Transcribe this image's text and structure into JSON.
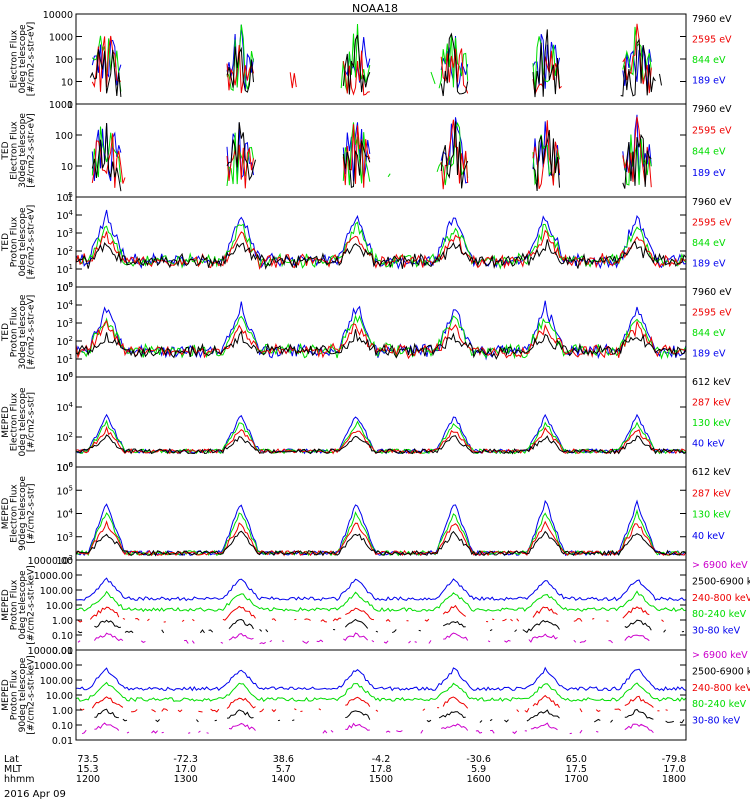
{
  "title": "NOAA18",
  "date": "2016 Apr 09",
  "colors": {
    "black": "#000000",
    "red": "#ee0000",
    "green": "#00dd00",
    "blue": "#0000ee",
    "magenta": "#cc00cc"
  },
  "chart_data": [
    {
      "type": "line",
      "panel": 0,
      "ylabel": [
        "Electron Flux",
        "0deg telescope",
        "[#/cm2-s-str-eV]"
      ],
      "yscale": "log",
      "ylim": [
        1,
        10000
      ],
      "yticks": [
        "10000",
        "1000",
        "100",
        "10",
        "1"
      ],
      "legend": [
        {
          "label": "7960 eV",
          "color": "#000000"
        },
        {
          "label": "2595 eV",
          "color": "#ee0000"
        },
        {
          "label": "844 eV",
          "color": "#00dd00"
        },
        {
          "label": "189 eV",
          "color": "#0000ee"
        }
      ]
    },
    {
      "type": "line",
      "panel": 1,
      "ylabel": [
        "TED",
        "Electron Flux",
        "30deg telescope",
        "[#/cm2-s-str-eV]"
      ],
      "yscale": "log",
      "ylim": [
        1,
        1000
      ],
      "yticks": [
        "1000",
        "100",
        "10",
        "1"
      ],
      "legend": [
        {
          "label": "7960 eV",
          "color": "#000000"
        },
        {
          "label": "2595 eV",
          "color": "#ee0000"
        },
        {
          "label": "844 eV",
          "color": "#00dd00"
        },
        {
          "label": "189 eV",
          "color": "#0000ee"
        }
      ]
    },
    {
      "type": "line",
      "panel": 2,
      "ylabel": [
        "TED",
        "Proton Flux",
        "0deg telescope",
        "[#/cm2-s-str-eV]"
      ],
      "yscale": "log",
      "ylim": [
        1,
        100000
      ],
      "yticks": [
        "10^5",
        "10^4",
        "10^3",
        "10^2",
        "10^1",
        "10^0"
      ],
      "legend": [
        {
          "label": "7960 eV",
          "color": "#000000"
        },
        {
          "label": "2595 eV",
          "color": "#ee0000"
        },
        {
          "label": "844 eV",
          "color": "#00dd00"
        },
        {
          "label": "189 eV",
          "color": "#0000ee"
        }
      ]
    },
    {
      "type": "line",
      "panel": 3,
      "ylabel": [
        "TED",
        "Proton Flux",
        "30deg telescope",
        "[#/cm2-s-str-eV]"
      ],
      "yscale": "log",
      "ylim": [
        1,
        100000
      ],
      "yticks": [
        "10^5",
        "10^4",
        "10^3",
        "10^2",
        "10^1",
        "10^0"
      ],
      "legend": [
        {
          "label": "7960 eV",
          "color": "#000000"
        },
        {
          "label": "2595 eV",
          "color": "#ee0000"
        },
        {
          "label": "844 eV",
          "color": "#00dd00"
        },
        {
          "label": "189 eV",
          "color": "#0000ee"
        }
      ]
    },
    {
      "type": "line",
      "panel": 4,
      "ylabel": [
        "MEPED",
        "Electron Flux",
        "0deg telescope",
        "[#/cm2-s-str]"
      ],
      "yscale": "log",
      "ylim": [
        1,
        1000000
      ],
      "yticks": [
        "10^6",
        "10^4",
        "10^2",
        "10^0"
      ],
      "legend": [
        {
          "label": "612 keV",
          "color": "#000000"
        },
        {
          "label": "287 keV",
          "color": "#ee0000"
        },
        {
          "label": "130 keV",
          "color": "#00dd00"
        },
        {
          "label": "40 keV",
          "color": "#0000ee"
        }
      ]
    },
    {
      "type": "line",
      "panel": 5,
      "ylabel": [
        "MEPED",
        "Electron Flux",
        "90deg telescope",
        "[#/cm2-s-str]"
      ],
      "yscale": "log",
      "ylim": [
        100,
        1000000
      ],
      "yticks": [
        "10^6",
        "10^5",
        "10^4",
        "10^3",
        "10^2"
      ],
      "legend": [
        {
          "label": "612 keV",
          "color": "#000000"
        },
        {
          "label": "287 keV",
          "color": "#ee0000"
        },
        {
          "label": "130 keV",
          "color": "#00dd00"
        },
        {
          "label": "40 keV",
          "color": "#0000ee"
        }
      ]
    },
    {
      "type": "line",
      "panel": 6,
      "ylabel": [
        "MEPED",
        "Proton Flux",
        "0deg telescope",
        "[#/cm2-s-str-keV]"
      ],
      "yscale": "log",
      "ylim": [
        0.01,
        10000
      ],
      "yticks": [
        "10000.00",
        "1000.00",
        "100.00",
        "10.00",
        "1.00",
        "0.10",
        "0.01"
      ],
      "legend": [
        {
          "label": "> 6900 keV",
          "color": "#cc00cc"
        },
        {
          "label": "2500-6900 keV",
          "color": "#000000"
        },
        {
          "label": "240-800 keV",
          "color": "#ee0000"
        },
        {
          "label": "80-240 keV",
          "color": "#00dd00"
        },
        {
          "label": "30-80 keV",
          "color": "#0000ee"
        }
      ]
    },
    {
      "type": "line",
      "panel": 7,
      "ylabel": [
        "MEPED",
        "Proton Flux",
        "90deg telescope",
        "[#/cm2-s-str-keV]"
      ],
      "yscale": "log",
      "ylim": [
        0.01,
        10000
      ],
      "yticks": [
        "10000.00",
        "1000.00",
        "100.00",
        "10.00",
        "1.00",
        "0.10",
        "0.01"
      ],
      "legend": [
        {
          "label": "> 6900 keV",
          "color": "#cc00cc"
        },
        {
          "label": "2500-6900 keV",
          "color": "#000000"
        },
        {
          "label": "240-800 keV",
          "color": "#ee0000"
        },
        {
          "label": "80-240 keV",
          "color": "#00dd00"
        },
        {
          "label": "30-80 keV",
          "color": "#0000ee"
        }
      ]
    }
  ],
  "x_axis": {
    "row_labels": [
      "Lat",
      "MLT",
      "hhmm"
    ],
    "ticks": [
      {
        "lat": "73.5",
        "mlt": "15.3",
        "hhmm": "1200"
      },
      {
        "lat": "-72.3",
        "mlt": "17.0",
        "hhmm": "1300"
      },
      {
        "lat": "38.6",
        "mlt": "5.7",
        "hhmm": "1400"
      },
      {
        "lat": "-4.2",
        "mlt": "17.8",
        "hhmm": "1500"
      },
      {
        "lat": "-30.6",
        "mlt": "5.9",
        "hhmm": "1600"
      },
      {
        "lat": "65.0",
        "mlt": "17.5",
        "hhmm": "1700"
      },
      {
        "lat": "-79.8",
        "mlt": "17.0",
        "hhmm": "1800"
      }
    ]
  }
}
